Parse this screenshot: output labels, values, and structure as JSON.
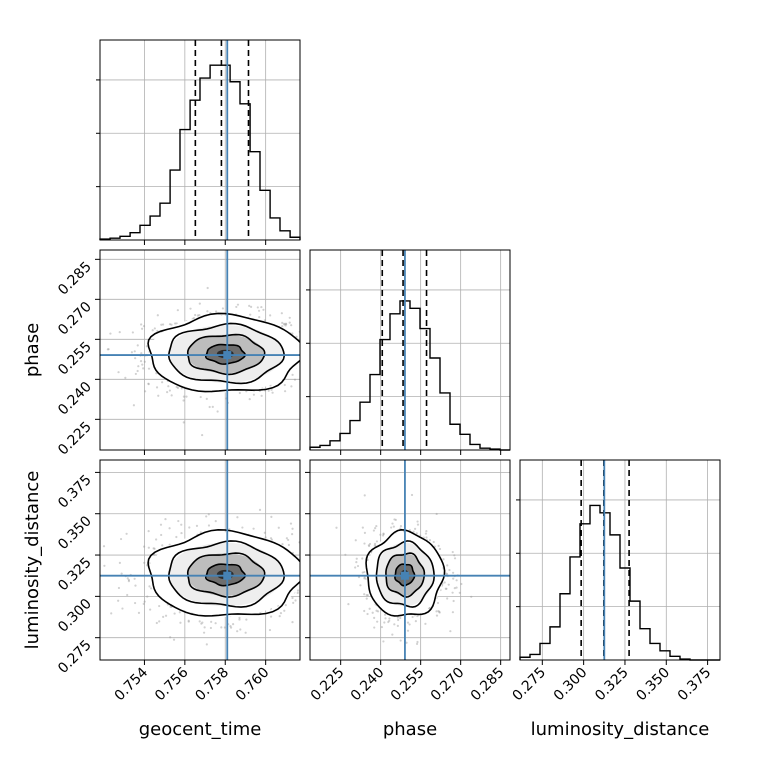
{
  "figure": {
    "type": "corner plot",
    "parameters": [
      "geocent_time",
      "phase",
      "luminosity_distance"
    ],
    "truth_color": "#4682b4",
    "quantile_style": "dashed black",
    "contour_color": "#000000",
    "scatter_color": "#9a9a9a"
  },
  "chart_data": [
    {
      "id": "hist_geocent_time",
      "type": "histogram",
      "panel": "row 1, column 1",
      "xlabel": "",
      "ylabel": "",
      "xlim": [
        0.7518,
        0.7617
      ],
      "x_ticks": [
        0.754,
        0.756,
        0.758,
        0.76
      ],
      "bin_edges": [
        0.7518,
        0.7523,
        0.75279,
        0.75329,
        0.75378,
        0.75428,
        0.75477,
        0.75527,
        0.75576,
        0.75626,
        0.75675,
        0.75725,
        0.75774,
        0.75824,
        0.75873,
        0.75923,
        0.75972,
        0.76022,
        0.76071,
        0.76121,
        0.7617
      ],
      "counts": [
        0.005,
        0.01,
        0.02,
        0.04,
        0.08,
        0.13,
        0.2,
        0.38,
        0.6,
        0.76,
        0.88,
        0.95,
        0.95,
        0.86,
        0.74,
        0.48,
        0.27,
        0.12,
        0.05,
        0.015
      ],
      "quantiles": [
        0.75652,
        0.75781,
        0.75915
      ],
      "truth": 0.7581,
      "grid": true
    },
    {
      "id": "hist_phase",
      "type": "histogram",
      "panel": "row 2, column 2",
      "xlabel": "",
      "ylabel": "",
      "xlim": [
        0.2135,
        0.2885
      ],
      "x_ticks": [
        0.225,
        0.24,
        0.255,
        0.27,
        0.285
      ],
      "bin_edges": [
        0.2135,
        0.21725,
        0.221,
        0.22475,
        0.2285,
        0.23225,
        0.236,
        0.23975,
        0.2435,
        0.24725,
        0.251,
        0.25475,
        0.2585,
        0.26225,
        0.266,
        0.26975,
        0.2735,
        0.27725,
        0.281,
        0.28475,
        0.2885
      ],
      "counts": [
        0.015,
        0.025,
        0.05,
        0.09,
        0.16,
        0.26,
        0.41,
        0.6,
        0.74,
        0.81,
        0.77,
        0.66,
        0.5,
        0.31,
        0.14,
        0.085,
        0.03,
        0.01,
        0.005,
        0.0
      ],
      "quantiles": [
        0.2406,
        0.2484,
        0.2572
      ],
      "truth": 0.2491,
      "grid": true
    },
    {
      "id": "hist_luminosity_distance",
      "type": "histogram",
      "panel": "row 3, column 3",
      "xlabel": "luminosity_distance",
      "ylabel": "",
      "xlim": [
        0.2615,
        0.3825
      ],
      "x_ticks": [
        0.275,
        0.3,
        0.325,
        0.35,
        0.375
      ],
      "bin_edges": [
        0.2615,
        0.26755,
        0.2736,
        0.27965,
        0.2857,
        0.29175,
        0.2978,
        0.30385,
        0.3099,
        0.31595,
        0.322,
        0.32805,
        0.3341,
        0.34015,
        0.3462,
        0.35225,
        0.3583,
        0.36435,
        0.3704,
        0.37645,
        0.3825
      ],
      "counts": [
        0.015,
        0.03,
        0.09,
        0.18,
        0.36,
        0.56,
        0.74,
        0.84,
        0.8,
        0.68,
        0.5,
        0.32,
        0.17,
        0.09,
        0.05,
        0.02,
        0.005,
        0.0,
        0.0,
        0.0
      ],
      "quantiles": [
        0.2985,
        0.3122,
        0.3275
      ],
      "truth": 0.3125,
      "grid": true
    },
    {
      "id": "hist2d_geocent_time_phase",
      "type": "2d-histogram",
      "panel": "row 2, column 1",
      "x_param": "geocent_time",
      "y_param": "phase",
      "xlabel": "",
      "ylabel": "phase",
      "xlim": [
        0.7518,
        0.7617
      ],
      "ylim": [
        0.2135,
        0.2885
      ],
      "x_ticks": [
        0.754,
        0.756,
        0.758,
        0.76
      ],
      "y_ticks": [
        0.225,
        0.24,
        0.255,
        0.27,
        0.285
      ],
      "center": [
        0.758,
        0.2495
      ],
      "sigma": [
        0.0019,
        0.0072
      ],
      "contour_levels_sigma": [
        0.5,
        1.0,
        1.5,
        2.0
      ],
      "truth": [
        0.7581,
        0.2491
      ],
      "grid": true
    },
    {
      "id": "hist2d_geocent_time_luminosity_distance",
      "type": "2d-histogram",
      "panel": "row 3, column 1",
      "x_param": "geocent_time",
      "y_param": "luminosity_distance",
      "xlabel": "geocent_time",
      "ylabel": "luminosity_distance",
      "xlim": [
        0.7518,
        0.7617
      ],
      "ylim": [
        0.2615,
        0.3825
      ],
      "x_ticks": [
        0.754,
        0.756,
        0.758,
        0.76
      ],
      "y_ticks": [
        0.275,
        0.3,
        0.325,
        0.35,
        0.375
      ],
      "center": [
        0.758,
        0.3132
      ],
      "sigma": [
        0.0019,
        0.0128
      ],
      "contour_levels_sigma": [
        0.5,
        1.0,
        1.5,
        2.0
      ],
      "truth": [
        0.7581,
        0.3125
      ],
      "grid": true
    },
    {
      "id": "hist2d_phase_luminosity_distance",
      "type": "2d-histogram",
      "panel": "row 3, column 2",
      "x_param": "phase",
      "y_param": "luminosity_distance",
      "xlabel": "phase",
      "ylabel": "",
      "xlim": [
        0.2135,
        0.2885
      ],
      "ylim": [
        0.2615,
        0.3825
      ],
      "x_ticks": [
        0.225,
        0.24,
        0.255,
        0.27,
        0.285
      ],
      "y_ticks": [
        0.275,
        0.3,
        0.325,
        0.35,
        0.375
      ],
      "center": [
        0.249,
        0.3132
      ],
      "sigma": [
        0.0072,
        0.0128
      ],
      "contour_levels_sigma": [
        0.5,
        1.0,
        1.5,
        2.0
      ],
      "truth": [
        0.2491,
        0.3125
      ],
      "grid": true
    }
  ]
}
